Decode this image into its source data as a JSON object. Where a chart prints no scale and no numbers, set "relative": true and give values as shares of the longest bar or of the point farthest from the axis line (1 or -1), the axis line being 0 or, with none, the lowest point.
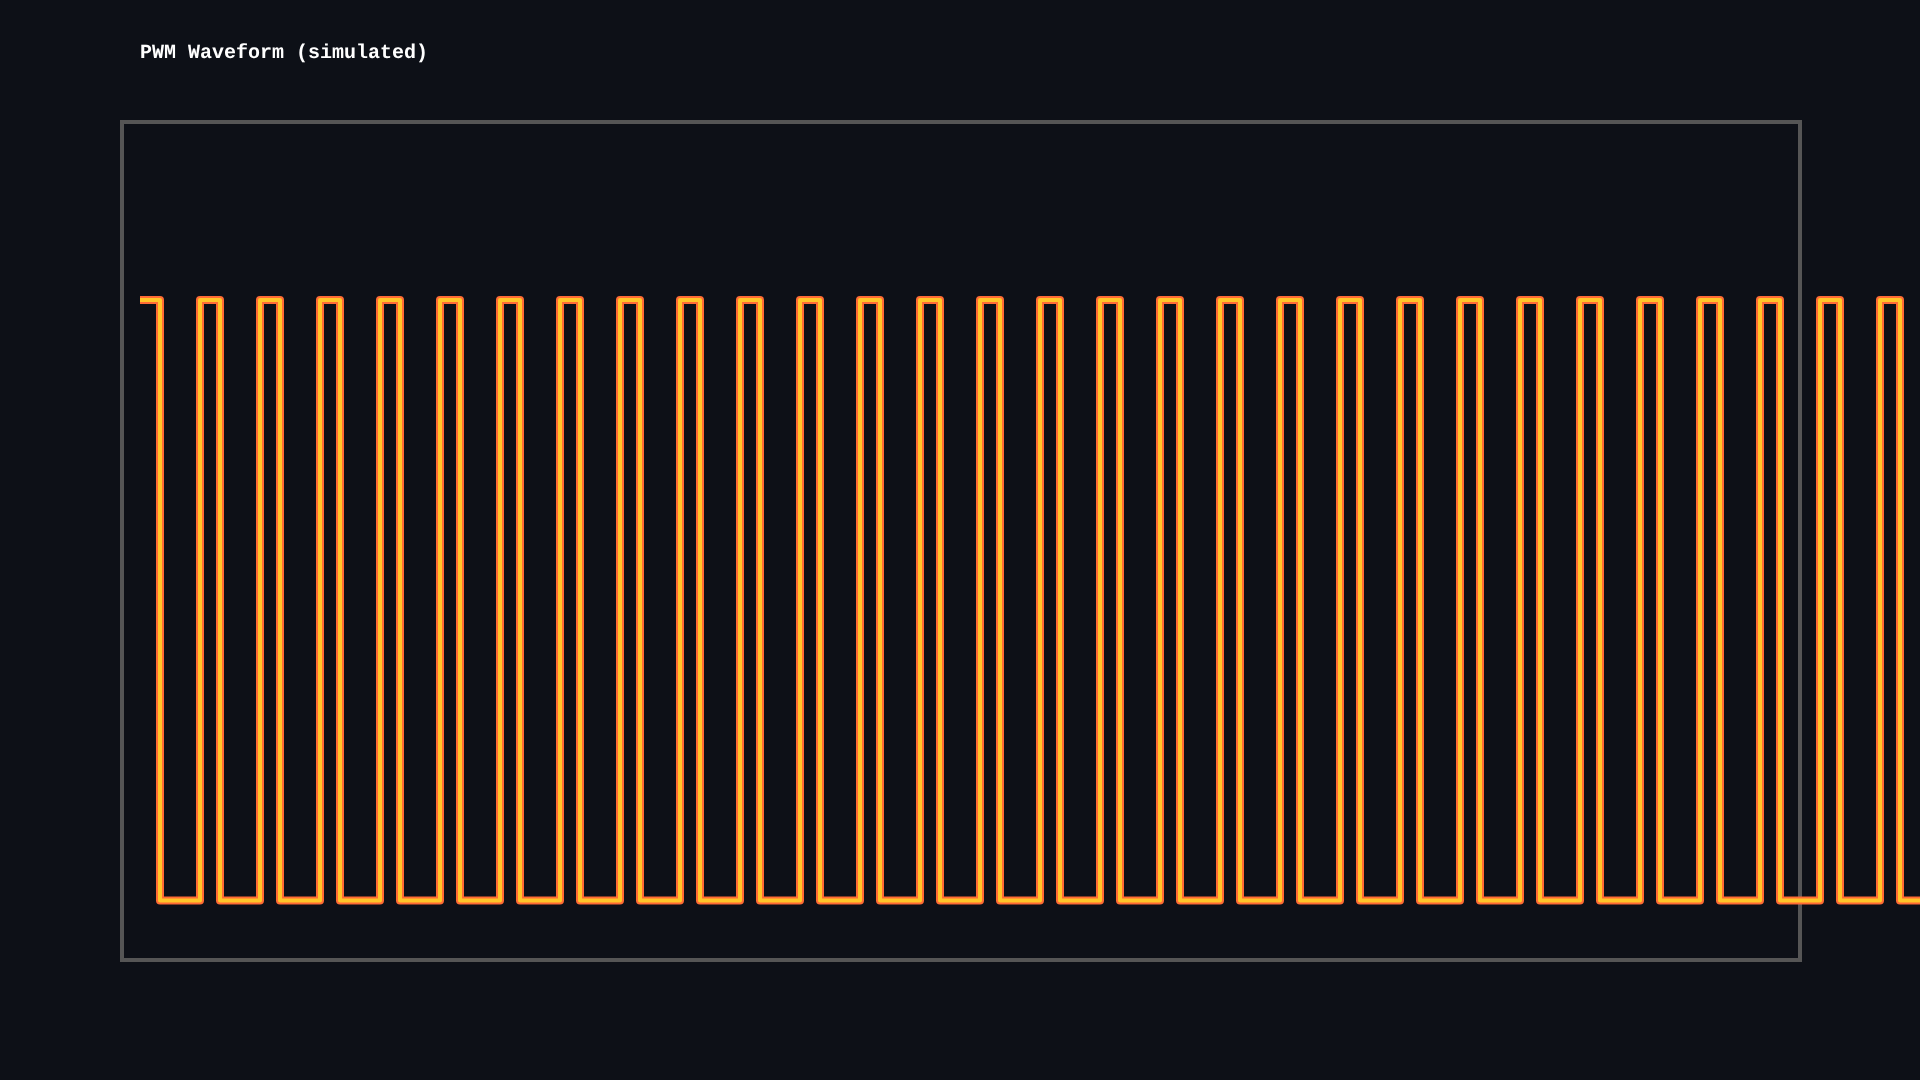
{
  "chart_data": {
    "type": "step",
    "title": "PWM Waveform (simulated)",
    "relative": true,
    "grid": false,
    "categories": [
      null,
      null,
      null,
      null,
      null,
      null,
      null,
      null,
      null,
      null,
      null,
      null,
      null,
      null,
      null,
      null,
      null,
      null,
      null,
      null,
      null,
      null,
      null,
      null,
      null,
      null,
      null,
      null,
      null,
      null,
      null,
      null,
      null,
      null,
      null,
      null,
      null,
      null,
      null,
      null,
      null,
      null,
      null,
      null,
      null,
      null,
      null,
      null,
      null,
      null,
      null,
      null,
      null,
      null,
      null,
      null,
      null,
      null,
      null,
      null,
      null,
      null,
      null,
      null,
      null,
      null,
      null,
      null,
      null,
      null,
      null,
      null,
      null,
      null,
      null,
      null,
      null,
      null,
      null,
      null,
      null,
      null,
      null,
      null,
      null,
      null,
      null,
      null,
      null,
      null
    ],
    "series": [
      {
        "color": "#ff6b35",
        "values": [
          1,
          0.09,
          0.09,
          1,
          0.09,
          0.09,
          1,
          0.09,
          0.09,
          1,
          0.09,
          0.09,
          1,
          0.09,
          0.09,
          1,
          0.09,
          0.09,
          1,
          0.09,
          0.09,
          1,
          0.09,
          0.09,
          1,
          0.09,
          0.09,
          1,
          0.09,
          0.09,
          1,
          0.09,
          0.09,
          1,
          0.09,
          0.09,
          1,
          0.09,
          0.09,
          1,
          0.09,
          0.09,
          1,
          0.09,
          0.09,
          1,
          0.09,
          0.09,
          1,
          0.09,
          0.09,
          1,
          0.09,
          0.09,
          1,
          0.09,
          0.09,
          1,
          0.09,
          0.09,
          1,
          0.09,
          0.09,
          1,
          0.09,
          0.09,
          1,
          0.09,
          0.09,
          1,
          0.09,
          0.09,
          1,
          0.09,
          0.09,
          1,
          0.09,
          0.09,
          1,
          0.09,
          0.09,
          1,
          0.09,
          0.09,
          1,
          0.09,
          0.09,
          1,
          0.09,
          0.09
        ]
      },
      {
        "color": "#ffc629",
        "values": [
          1,
          0.09,
          0.09,
          1,
          0.09,
          0.09,
          1,
          0.09,
          0.09,
          1,
          0.09,
          0.09,
          1,
          0.09,
          0.09,
          1,
          0.09,
          0.09,
          1,
          0.09,
          0.09,
          1,
          0.09,
          0.09,
          1,
          0.09,
          0.09,
          1,
          0.09,
          0.09,
          1,
          0.09,
          0.09,
          1,
          0.09,
          0.09,
          1,
          0.09,
          0.09,
          1,
          0.09,
          0.09,
          1,
          0.09,
          0.09,
          1,
          0.09,
          0.09,
          1,
          0.09,
          0.09,
          1,
          0.09,
          0.09,
          1,
          0.09,
          0.09,
          1,
          0.09,
          0.09,
          1,
          0.09,
          0.09,
          1,
          0.09,
          0.09,
          1,
          0.09,
          0.09,
          1,
          0.09,
          0.09,
          1,
          0.09,
          0.09,
          1,
          0.09,
          0.09,
          1,
          0.09,
          0.09,
          1,
          0.09,
          0.09,
          1,
          0.09,
          0.09,
          1,
          0.09,
          0.09
        ]
      }
    ]
  }
}
